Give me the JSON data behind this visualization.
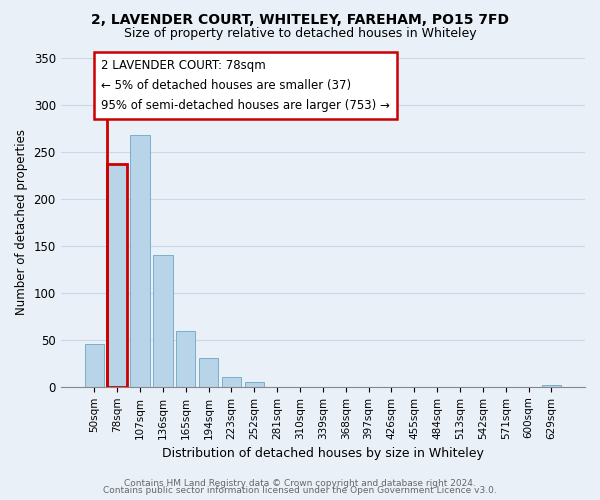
{
  "title": "2, LAVENDER COURT, WHITELEY, FAREHAM, PO15 7FD",
  "subtitle": "Size of property relative to detached houses in Whiteley",
  "xlabel": "Distribution of detached houses by size in Whiteley",
  "ylabel": "Number of detached properties",
  "bar_labels": [
    "50sqm",
    "78sqm",
    "107sqm",
    "136sqm",
    "165sqm",
    "194sqm",
    "223sqm",
    "252sqm",
    "281sqm",
    "310sqm",
    "339sqm",
    "368sqm",
    "397sqm",
    "426sqm",
    "455sqm",
    "484sqm",
    "513sqm",
    "542sqm",
    "571sqm",
    "600sqm",
    "629sqm"
  ],
  "bar_values": [
    46,
    237,
    268,
    140,
    59,
    31,
    10,
    5,
    0,
    0,
    0,
    0,
    0,
    0,
    0,
    0,
    0,
    0,
    0,
    0,
    2
  ],
  "bar_color": "#b8d4e8",
  "bar_edge_color": "#7aaec8",
  "highlight_bar_index": 1,
  "highlight_color": "#cc0000",
  "ylim": [
    0,
    350
  ],
  "yticks": [
    0,
    50,
    100,
    150,
    200,
    250,
    300,
    350
  ],
  "annotation_title": "2 LAVENDER COURT: 78sqm",
  "annotation_line1": "← 5% of detached houses are smaller (37)",
  "annotation_line2": "95% of semi-detached houses are larger (753) →",
  "annotation_box_facecolor": "#ffffff",
  "annotation_border_color": "#cc0000",
  "footer_line1": "Contains HM Land Registry data © Crown copyright and database right 2024.",
  "footer_line2": "Contains public sector information licensed under the Open Government Licence v3.0.",
  "background_color": "#eaf0f8",
  "plot_bg_color": "#eaf0f8",
  "grid_color": "#c8d8e8",
  "title_fontsize": 10,
  "subtitle_fontsize": 9
}
